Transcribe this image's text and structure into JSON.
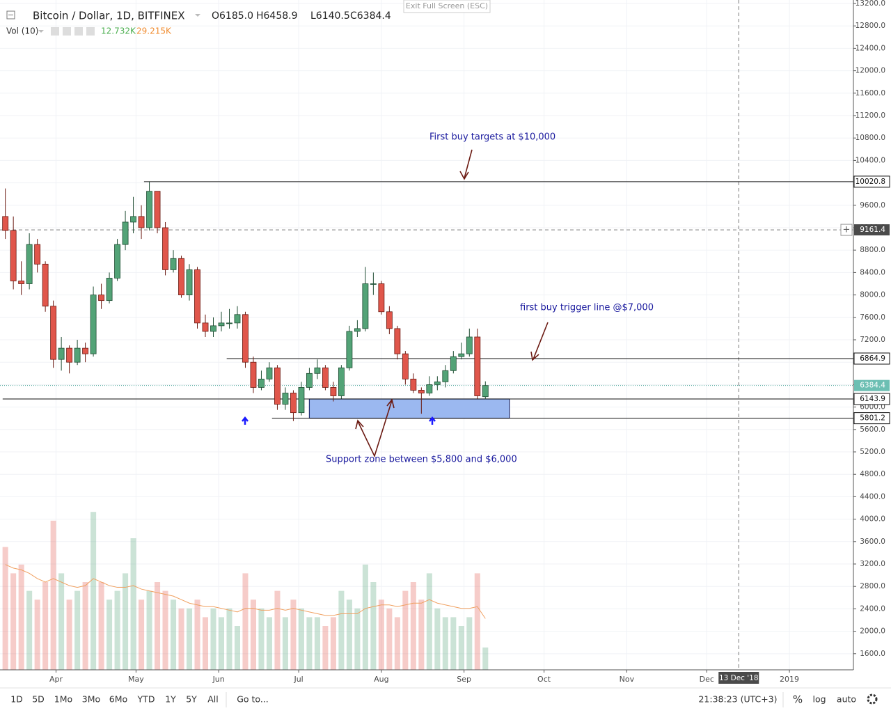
{
  "header": {
    "symbol": "Bitcoin / Dollar, 1D, BITFINEX",
    "ohlc": [
      "O6185.0",
      "H6458.9",
      "L6140.5",
      "C6384.4"
    ],
    "volume_title": "Vol (10)",
    "volume_values": [
      "12.732K",
      "29.215K"
    ],
    "exit_fullscreen": "Exit Full Screen (ESC)"
  },
  "chart_data": {
    "type": "candlestick",
    "x": [
      71,
      74,
      77,
      80,
      83,
      86,
      89,
      92,
      95,
      98,
      101,
      104,
      107,
      110,
      113,
      116,
      119,
      122,
      125,
      128,
      131,
      134,
      137,
      140,
      143,
      146,
      149,
      152,
      155,
      158,
      161,
      164,
      167,
      170,
      173,
      176,
      179,
      182,
      185,
      188,
      191,
      194,
      197,
      200,
      203,
      206,
      209,
      212,
      215,
      218,
      221,
      224,
      227,
      230,
      233,
      236,
      239,
      242,
      245,
      248,
      251
    ],
    "open": [
      9400,
      9150,
      8250,
      8200,
      8900,
      8550,
      7800,
      6850,
      7050,
      6800,
      7050,
      6950,
      8000,
      7900,
      8300,
      8900,
      9300,
      9400,
      9200,
      9850,
      9200,
      8450,
      8650,
      8000,
      8450,
      7500,
      7350,
      7450,
      7500,
      7500,
      7650,
      6800,
      6350,
      6500,
      6700,
      6050,
      6250,
      5900,
      6350,
      6600,
      6700,
      6350,
      6200,
      6700,
      7350,
      7400,
      8200,
      8200,
      7700,
      7400,
      6950,
      6500,
      6300,
      6250,
      6400,
      6450,
      6650,
      6900,
      6950,
      7250,
      6185
    ],
    "high": [
      9900,
      9400,
      8600,
      9100,
      9000,
      8600,
      7900,
      7250,
      7100,
      7200,
      7150,
      8150,
      8200,
      8400,
      9000,
      9500,
      9750,
      9600,
      10020,
      9850,
      9300,
      8800,
      8700,
      8550,
      8500,
      7650,
      7600,
      7700,
      7750,
      7800,
      7700,
      6900,
      6650,
      6800,
      6750,
      6350,
      6300,
      6450,
      6700,
      6850,
      6750,
      6450,
      6750,
      7450,
      7550,
      8500,
      8400,
      8250,
      7800,
      7450,
      7000,
      6600,
      6350,
      6550,
      6550,
      6750,
      7000,
      7150,
      7400,
      7400,
      6458.9
    ],
    "low": [
      9000,
      8100,
      8000,
      8100,
      8400,
      7700,
      6700,
      6650,
      6600,
      6750,
      6800,
      6900,
      7750,
      7850,
      8250,
      8800,
      9100,
      9000,
      9150,
      9100,
      8350,
      8400,
      7950,
      7900,
      7400,
      7250,
      7250,
      7350,
      7400,
      7400,
      6700,
      6250,
      6300,
      6450,
      5950,
      5950,
      5750,
      5850,
      6300,
      6500,
      6300,
      6100,
      6150,
      6650,
      7250,
      7350,
      8000,
      7650,
      7300,
      6850,
      6400,
      6250,
      5880,
      6200,
      6300,
      6350,
      6600,
      6850,
      6900,
      6150,
      6140.5
    ],
    "close": [
      9150,
      8250,
      8200,
      8900,
      8550,
      7800,
      6850,
      7050,
      6800,
      7050,
      6950,
      8000,
      7900,
      8300,
      8900,
      9300,
      9400,
      9200,
      9850,
      9200,
      8450,
      8650,
      8000,
      8450,
      7500,
      7350,
      7450,
      7500,
      7500,
      7650,
      6800,
      6350,
      6500,
      6700,
      6050,
      6250,
      5900,
      6350,
      6600,
      6700,
      6350,
      6200,
      6700,
      7350,
      7400,
      8200,
      8200,
      7700,
      7400,
      6950,
      6500,
      6300,
      6250,
      6400,
      6450,
      6650,
      6900,
      6950,
      7250,
      6200,
      6384.4
    ],
    "volume": [
      70,
      55,
      60,
      45,
      40,
      50,
      85,
      55,
      40,
      45,
      50,
      90,
      50,
      40,
      45,
      55,
      75,
      40,
      45,
      50,
      45,
      40,
      35,
      35,
      40,
      30,
      35,
      30,
      35,
      25,
      55,
      40,
      35,
      30,
      45,
      30,
      40,
      35,
      30,
      30,
      25,
      30,
      45,
      40,
      35,
      60,
      50,
      40,
      35,
      30,
      45,
      50,
      40,
      55,
      35,
      30,
      30,
      25,
      30,
      55,
      12.732
    ],
    "volume_ma": [
      60,
      58,
      57,
      55,
      52,
      50,
      52,
      50,
      48,
      47,
      48,
      52,
      50,
      48,
      47,
      47,
      48,
      46,
      45,
      44,
      43,
      42,
      40,
      38,
      37,
      36,
      36,
      35,
      34,
      33,
      35,
      35,
      34,
      34,
      35,
      34,
      35,
      34,
      33,
      32,
      31,
      31,
      32,
      32,
      32,
      35,
      36,
      37,
      37,
      36,
      37,
      38,
      38,
      40,
      38,
      37,
      36,
      35,
      35,
      36,
      29.215
    ],
    "up_color": "#53a377",
    "down_color": "#e0564b",
    "volume_ma_color": "#f0a060",
    "xlim": [
      69,
      389
    ],
    "ylim": [
      1312,
      13262
    ],
    "vlim": [
      0,
      100
    ],
    "grid": true,
    "xticks": [
      {
        "value": 90,
        "label": "Apr"
      },
      {
        "value": 120,
        "label": "May"
      },
      {
        "value": 151,
        "label": "Jun"
      },
      {
        "value": 181,
        "label": "Jul"
      },
      {
        "value": 212,
        "label": "Aug"
      },
      {
        "value": 243,
        "label": "Sep"
      },
      {
        "value": 273,
        "label": "Oct"
      },
      {
        "value": 304,
        "label": "Nov"
      },
      {
        "value": 334,
        "label": "Dec"
      },
      {
        "value": 365,
        "label": "2019"
      }
    ],
    "yticks": [
      {
        "value": 1600,
        "label": "1600.0"
      },
      {
        "value": 2000,
        "label": "2000.0"
      },
      {
        "value": 2400,
        "label": "2400.0"
      },
      {
        "value": 2800,
        "label": "2800.0"
      },
      {
        "value": 3200,
        "label": "3200.0"
      },
      {
        "value": 3600,
        "label": "3600.0"
      },
      {
        "value": 4000,
        "label": "4000.0"
      },
      {
        "value": 4400,
        "label": "4400.0"
      },
      {
        "value": 4800,
        "label": "4800.0"
      },
      {
        "value": 5200,
        "label": "5200.0"
      },
      {
        "value": 5600,
        "label": "5600.0"
      },
      {
        "value": 6000,
        "label": "6000.0"
      },
      {
        "value": 6400,
        "label": "6400.0"
      },
      {
        "value": 6800,
        "label": "6800.0"
      },
      {
        "value": 7200,
        "label": "7200.0"
      },
      {
        "value": 7600,
        "label": "7600.0"
      },
      {
        "value": 8000,
        "label": "8000.0"
      },
      {
        "value": 8400,
        "label": "8400.0"
      },
      {
        "value": 8800,
        "label": "8800.0"
      },
      {
        "value": 9200,
        "label": "9200.0"
      },
      {
        "value": 9600,
        "label": "9600.0"
      },
      {
        "value": 10000,
        "label": "10000.0"
      },
      {
        "value": 10400,
        "label": "10400.0"
      },
      {
        "value": 10800,
        "label": "10800.0"
      },
      {
        "value": 11200,
        "label": "11200.0"
      },
      {
        "value": 11600,
        "label": "11600.0"
      },
      {
        "value": 12000,
        "label": "12000.0"
      },
      {
        "value": 12400,
        "label": "12400.0"
      },
      {
        "value": 12800,
        "label": "12800.0"
      },
      {
        "value": 13200,
        "label": "13200.0"
      }
    ],
    "price_lines": [
      {
        "value": 10020.8,
        "label": "10020.8",
        "start": 123
      },
      {
        "value": 6864.9,
        "label": "6864.9",
        "start": 154
      },
      {
        "value": 6143.9,
        "label": "6143.9",
        "start": 70
      },
      {
        "value": 5801.2,
        "label": "5801.2",
        "start": 171
      }
    ],
    "last_price": {
      "value": 6384.4,
      "label": "6384.4"
    },
    "crosshair": {
      "x": 346,
      "x_label": "13 Dec '18",
      "y": 9161.4,
      "y_label": "9161.4"
    },
    "zone": {
      "x": [
        185,
        260
      ],
      "y": [
        5801.2,
        6143.9
      ]
    },
    "annotations": [
      "First buy targets at $10,000",
      "first buy trigger line @$7,000",
      "Support zone between $5,800 and $6,000"
    ]
  },
  "toolbar": {
    "ranges": [
      "1D",
      "5D",
      "1Mo",
      "3Mo",
      "6Mo",
      "YTD",
      "1Y",
      "5Y",
      "All"
    ],
    "goto": "Go to...",
    "clock": "21:38:23 (UTC+3)",
    "percent": "%",
    "log": "log",
    "auto": "auto"
  }
}
